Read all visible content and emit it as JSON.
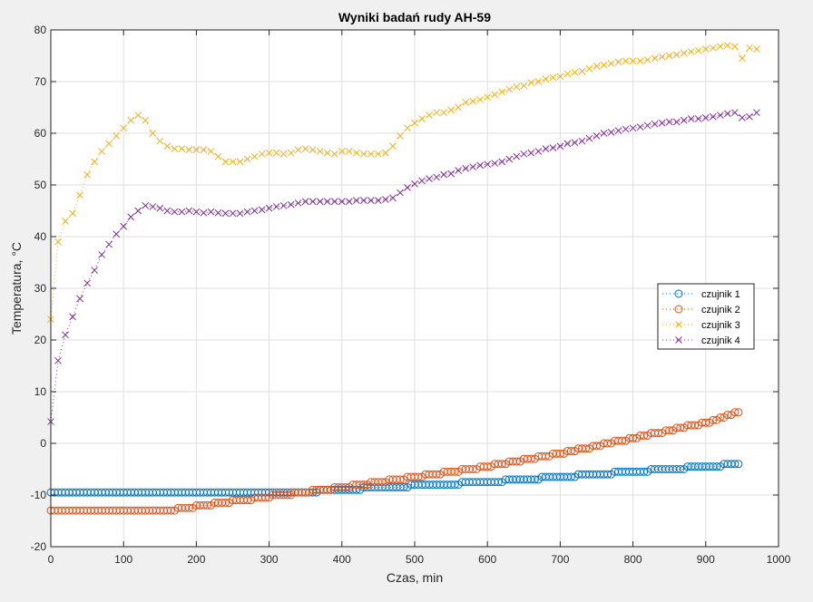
{
  "chart_data": {
    "type": "line",
    "title": "Wyniki badań rudy AH-59",
    "xlabel": "Czas, min",
    "ylabel": "Temperatura, °C",
    "xlim": [
      0,
      1000
    ],
    "ylim": [
      -20,
      80
    ],
    "xticks": [
      0,
      100,
      200,
      300,
      400,
      500,
      600,
      700,
      800,
      900,
      1000
    ],
    "yticks": [
      -20,
      -10,
      0,
      10,
      20,
      30,
      40,
      50,
      60,
      70,
      80
    ],
    "xtick_labels": [
      "0",
      "100",
      "200",
      "300",
      "400",
      "500",
      "600",
      "700",
      "800",
      "900",
      "1000"
    ],
    "ytick_labels": [
      "-20",
      "-10",
      "0",
      "10",
      "20",
      "30",
      "40",
      "50",
      "60",
      "70",
      "80"
    ],
    "grid": true,
    "legend_position": "right",
    "series": [
      {
        "name": "czujnik 1",
        "color": "#0072BD",
        "marker": "circle",
        "line": "dotted",
        "knots": [
          [
            0,
            -9.5
          ],
          [
            340,
            -9.5
          ],
          [
            460,
            -8.5
          ],
          [
            600,
            -7.5
          ],
          [
            700,
            -6.5
          ],
          [
            800,
            -5.5
          ],
          [
            900,
            -4.5
          ],
          [
            945,
            -4.0
          ]
        ],
        "step": 5,
        "xmax": 945
      },
      {
        "name": "czujnik 2",
        "color": "#D95319",
        "marker": "circle",
        "line": "dotted",
        "knots": [
          [
            0,
            -13.2
          ],
          [
            150,
            -13.2
          ],
          [
            200,
            -12.2
          ],
          [
            300,
            -10.3
          ],
          [
            400,
            -8.5
          ],
          [
            500,
            -6.5
          ],
          [
            600,
            -4.5
          ],
          [
            700,
            -2.0
          ],
          [
            800,
            1.0
          ],
          [
            900,
            4.0
          ],
          [
            945,
            6.0
          ]
        ],
        "step": 5,
        "xmax": 945
      },
      {
        "name": "czujnik 3",
        "color": "#EDB120",
        "marker": "x",
        "line": "dotted",
        "points": [
          [
            0,
            24
          ],
          [
            10,
            39
          ],
          [
            20,
            43
          ],
          [
            30,
            44.5
          ],
          [
            40,
            48
          ],
          [
            50,
            52
          ],
          [
            60,
            54.5
          ],
          [
            70,
            56.5
          ],
          [
            80,
            58
          ],
          [
            90,
            59.5
          ],
          [
            100,
            61
          ],
          [
            110,
            62.5
          ],
          [
            120,
            63.5
          ],
          [
            130,
            62.5
          ],
          [
            140,
            60
          ],
          [
            150,
            58.5
          ],
          [
            160,
            57.5
          ],
          [
            170,
            57
          ],
          [
            180,
            57
          ],
          [
            190,
            56.8
          ],
          [
            200,
            56.8
          ],
          [
            210,
            56.8
          ],
          [
            220,
            56.5
          ],
          [
            230,
            55.5
          ],
          [
            240,
            54.5
          ],
          [
            250,
            54.5
          ],
          [
            260,
            54.5
          ],
          [
            270,
            55
          ],
          [
            280,
            55.5
          ],
          [
            290,
            56
          ],
          [
            300,
            56.2
          ],
          [
            310,
            56.2
          ],
          [
            320,
            56
          ],
          [
            330,
            56.2
          ],
          [
            340,
            56.8
          ],
          [
            350,
            57
          ],
          [
            360,
            56.8
          ],
          [
            370,
            56.5
          ],
          [
            380,
            56.2
          ],
          [
            390,
            56
          ],
          [
            400,
            56.5
          ],
          [
            410,
            56.5
          ],
          [
            420,
            56.2
          ],
          [
            430,
            56
          ],
          [
            440,
            56
          ],
          [
            450,
            56
          ],
          [
            460,
            56.2
          ],
          [
            470,
            57.5
          ],
          [
            480,
            59.5
          ],
          [
            490,
            61
          ],
          [
            500,
            62
          ],
          [
            510,
            62.8
          ],
          [
            520,
            63.5
          ],
          [
            530,
            64
          ],
          [
            540,
            64
          ],
          [
            550,
            64.5
          ],
          [
            560,
            65
          ],
          [
            570,
            66
          ],
          [
            580,
            66.2
          ],
          [
            590,
            66.5
          ],
          [
            600,
            67
          ],
          [
            610,
            67.5
          ],
          [
            620,
            68
          ],
          [
            630,
            68.5
          ],
          [
            640,
            69
          ],
          [
            650,
            69.2
          ],
          [
            660,
            69.8
          ],
          [
            670,
            70
          ],
          [
            680,
            70.5
          ],
          [
            690,
            70.8
          ],
          [
            700,
            71
          ],
          [
            710,
            71.5
          ],
          [
            720,
            71.8
          ],
          [
            730,
            72
          ],
          [
            740,
            72.5
          ],
          [
            750,
            73
          ],
          [
            760,
            73.2
          ],
          [
            770,
            73.5
          ],
          [
            780,
            73.8
          ],
          [
            790,
            74
          ],
          [
            800,
            74
          ],
          [
            810,
            74
          ],
          [
            820,
            74.2
          ],
          [
            830,
            74.5
          ],
          [
            840,
            74.8
          ],
          [
            850,
            75
          ],
          [
            860,
            75.2
          ],
          [
            870,
            75.5
          ],
          [
            880,
            75.8
          ],
          [
            890,
            76
          ],
          [
            900,
            76.3
          ],
          [
            910,
            76.5
          ],
          [
            920,
            76.8
          ],
          [
            930,
            77
          ],
          [
            940,
            76.8
          ],
          [
            950,
            74.5
          ],
          [
            960,
            76.5
          ],
          [
            970,
            76.3
          ]
        ]
      },
      {
        "name": "czujnik 4",
        "color": "#7E2F8E",
        "marker": "x",
        "line": "dotted",
        "points": [
          [
            0,
            4.2
          ],
          [
            10,
            16
          ],
          [
            20,
            21
          ],
          [
            30,
            24.5
          ],
          [
            40,
            28
          ],
          [
            50,
            31
          ],
          [
            60,
            33.5
          ],
          [
            70,
            36.5
          ],
          [
            80,
            38.5
          ],
          [
            90,
            40.5
          ],
          [
            100,
            42
          ],
          [
            110,
            43.8
          ],
          [
            120,
            45
          ],
          [
            130,
            46
          ],
          [
            140,
            45.8
          ],
          [
            150,
            45.5
          ],
          [
            160,
            45
          ],
          [
            170,
            44.8
          ],
          [
            180,
            44.8
          ],
          [
            190,
            45
          ],
          [
            200,
            44.8
          ],
          [
            210,
            44.6
          ],
          [
            220,
            44.8
          ],
          [
            230,
            44.6
          ],
          [
            240,
            44.5
          ],
          [
            250,
            44.5
          ],
          [
            260,
            44.5
          ],
          [
            270,
            44.8
          ],
          [
            280,
            45
          ],
          [
            290,
            45.2
          ],
          [
            300,
            45.5
          ],
          [
            310,
            45.8
          ],
          [
            320,
            46
          ],
          [
            330,
            46.2
          ],
          [
            340,
            46.5
          ],
          [
            350,
            46.8
          ],
          [
            360,
            46.8
          ],
          [
            370,
            46.8
          ],
          [
            380,
            46.8
          ],
          [
            390,
            46.8
          ],
          [
            400,
            46.8
          ],
          [
            410,
            46.8
          ],
          [
            420,
            47
          ],
          [
            430,
            47
          ],
          [
            440,
            47
          ],
          [
            450,
            47
          ],
          [
            460,
            47.2
          ],
          [
            470,
            47.5
          ],
          [
            480,
            48.5
          ],
          [
            490,
            49.5
          ],
          [
            500,
            50.2
          ],
          [
            510,
            50.8
          ],
          [
            520,
            51.2
          ],
          [
            530,
            51.5
          ],
          [
            540,
            52
          ],
          [
            550,
            52.2
          ],
          [
            560,
            52.8
          ],
          [
            570,
            53.2
          ],
          [
            580,
            53.5
          ],
          [
            590,
            53.8
          ],
          [
            600,
            54
          ],
          [
            610,
            54.2
          ],
          [
            620,
            54.5
          ],
          [
            630,
            55
          ],
          [
            640,
            55.5
          ],
          [
            650,
            56
          ],
          [
            660,
            56.2
          ],
          [
            670,
            56.5
          ],
          [
            680,
            57
          ],
          [
            690,
            57.2
          ],
          [
            700,
            57.5
          ],
          [
            710,
            58
          ],
          [
            720,
            58.2
          ],
          [
            730,
            58.5
          ],
          [
            740,
            59
          ],
          [
            750,
            59.5
          ],
          [
            760,
            60
          ],
          [
            770,
            60.2
          ],
          [
            780,
            60.5
          ],
          [
            790,
            60.8
          ],
          [
            800,
            61
          ],
          [
            810,
            61.2
          ],
          [
            820,
            61.5
          ],
          [
            830,
            61.8
          ],
          [
            840,
            62
          ],
          [
            850,
            62.2
          ],
          [
            860,
            62.2
          ],
          [
            870,
            62.5
          ],
          [
            880,
            62.8
          ],
          [
            890,
            62.8
          ],
          [
            900,
            63
          ],
          [
            910,
            63.2
          ],
          [
            920,
            63.5
          ],
          [
            930,
            63.8
          ],
          [
            940,
            64
          ],
          [
            950,
            63
          ],
          [
            960,
            63.2
          ],
          [
            970,
            64
          ]
        ]
      }
    ]
  }
}
